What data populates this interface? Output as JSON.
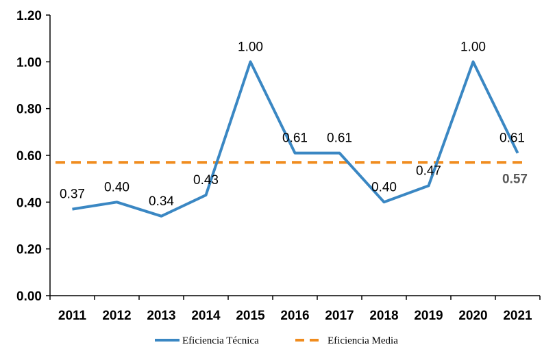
{
  "chart_data": {
    "type": "line",
    "categories": [
      "2011",
      "2012",
      "2013",
      "2014",
      "2015",
      "2016",
      "2017",
      "2018",
      "2019",
      "2020",
      "2021"
    ],
    "series": [
      {
        "name": "Eficiencia Técnica",
        "color": "#3a87c3",
        "style": "solid",
        "values": [
          0.37,
          0.4,
          0.34,
          0.43,
          1.0,
          0.61,
          0.61,
          0.4,
          0.47,
          1.0,
          0.61
        ],
        "labels": [
          "0.37",
          "0.40",
          "0.34",
          "0.43",
          "1.00",
          "0.61",
          "0.61",
          "0.40",
          "0.47",
          "1.00",
          "0.61"
        ]
      },
      {
        "name": "Eficiencia Media",
        "color": "#f08c1e",
        "style": "dashed",
        "value": 0.57,
        "label": "0.57"
      }
    ],
    "ylim": [
      0,
      1.2
    ],
    "yticks": [
      "0.00",
      "0.20",
      "0.40",
      "0.60",
      "0.80",
      "1.00",
      "1.20"
    ],
    "grid": false,
    "legend": "bottom"
  }
}
